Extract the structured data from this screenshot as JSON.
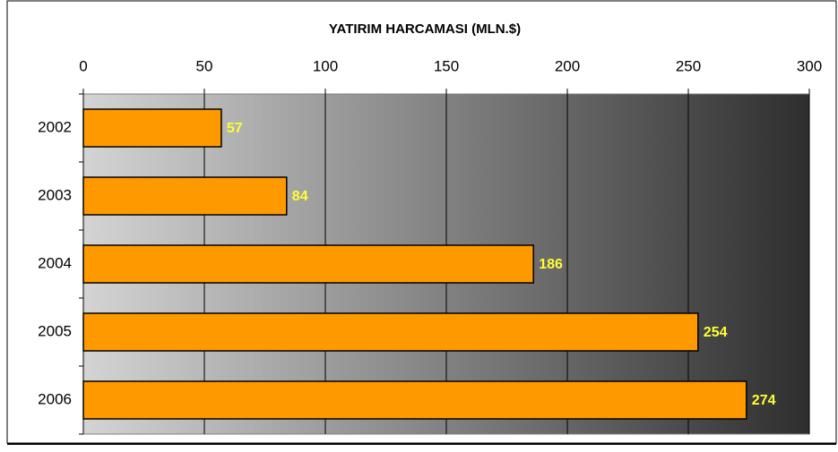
{
  "chart_data": {
    "type": "bar",
    "orientation": "horizontal",
    "title": "YATIRIM HARCAMASI (MLN.$)",
    "categories": [
      "2002",
      "2003",
      "2004",
      "2005",
      "2006"
    ],
    "values": [
      57,
      84,
      186,
      254,
      274
    ],
    "color": "#ff9900",
    "label_color": "#ffff33",
    "xlim": [
      0,
      300
    ],
    "xticks": [
      0,
      50,
      100,
      150,
      200,
      250,
      300
    ],
    "grid": true
  }
}
